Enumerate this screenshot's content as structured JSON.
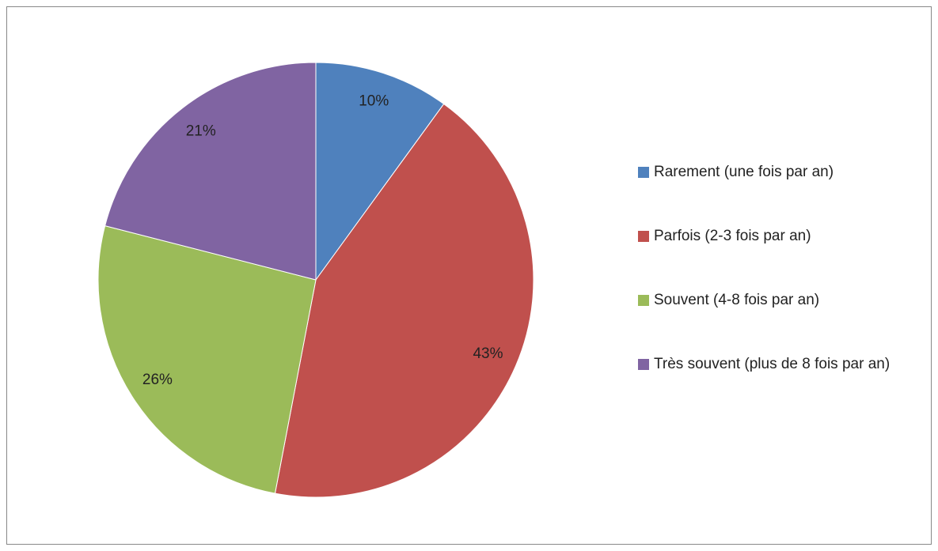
{
  "chart_data": {
    "type": "pie",
    "categories": [
      "Rarement (une fois par an)",
      "Parfois (2-3 fois par an)",
      "Souvent (4-8 fois par an)",
      "Très souvent (plus de 8 fois par an)"
    ],
    "values": [
      10,
      43,
      26,
      21
    ],
    "value_labels": [
      "10%",
      "43%",
      "26%",
      "21%"
    ],
    "colors": [
      "#4f81bd",
      "#c0504d",
      "#9bbb59",
      "#8064a2"
    ],
    "legend": "right"
  }
}
